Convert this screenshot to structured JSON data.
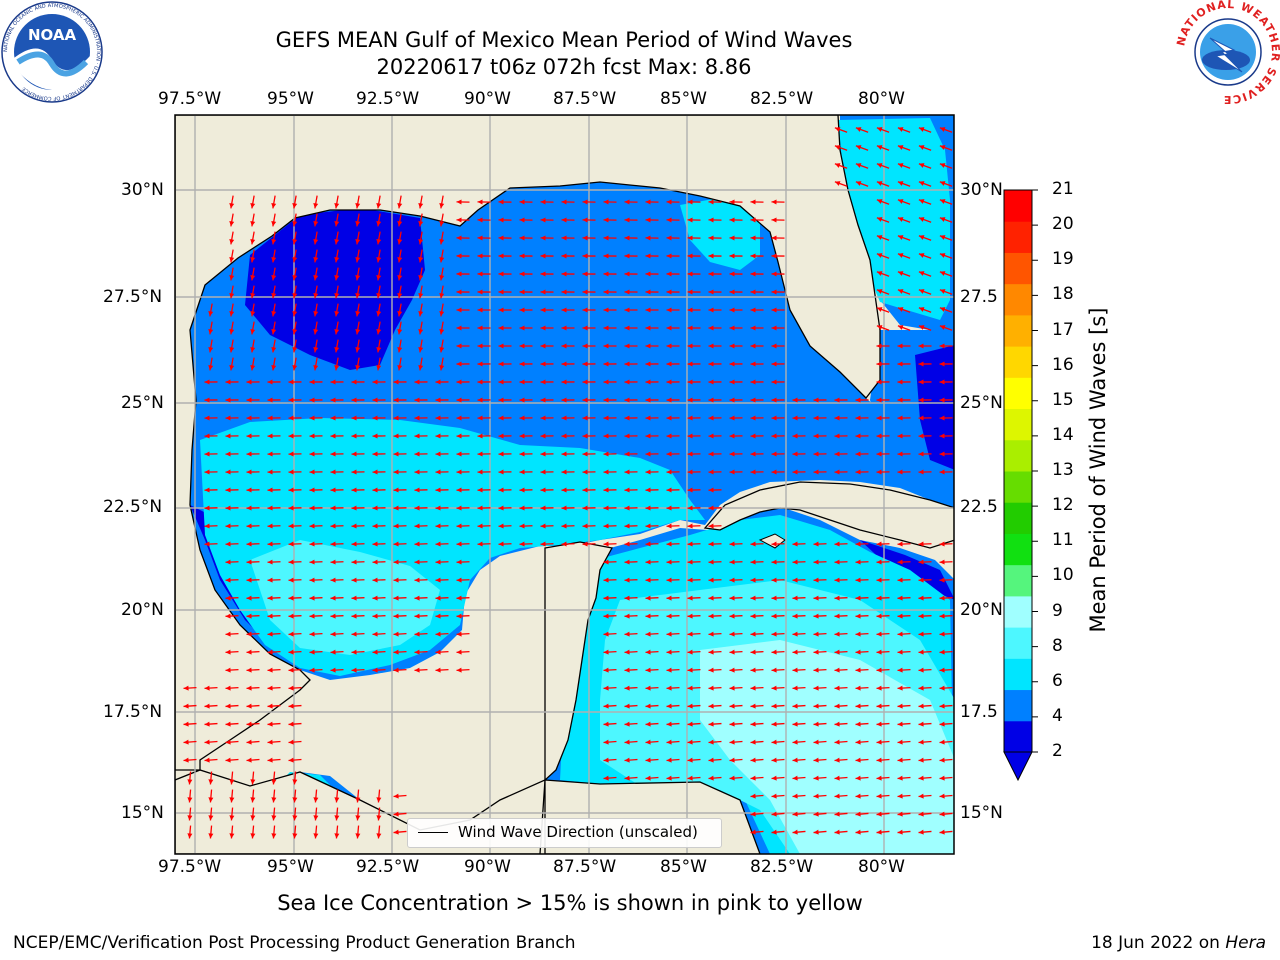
{
  "title": {
    "line1": "GEFS MEAN Gulf of Mexico Mean Period of Wind Waves",
    "line2": "20220617 t06z 072h fcst   Max: 8.86"
  },
  "axes": {
    "lon_ticks": [
      "97.5°W",
      "95°W",
      "92.5°W",
      "90°W",
      "87.5°W",
      "85°W",
      "82.5°W",
      "80°W"
    ],
    "lat_ticks_left": [
      "30°N",
      "27.5°N",
      "25°N",
      "22.5°N",
      "20°N",
      "17.5°N",
      "15°N"
    ],
    "lat_ticks_right": [
      "30°N",
      "27.5",
      "25°N",
      "22.5",
      "20°N",
      "17.5",
      "15°N"
    ]
  },
  "colorbar": {
    "label": "Mean Period of Wind Waves [s]",
    "ticks": [
      "21",
      "20",
      "19",
      "18",
      "17",
      "16",
      "15",
      "14",
      "13",
      "12",
      "11",
      "10",
      "9",
      "8",
      "6",
      "4",
      "2"
    ],
    "colors": [
      "#0000e6",
      "#0080ff",
      "#00e5ff",
      "#4df7ff",
      "#a0ffff",
      "#55f57d",
      "#11e011",
      "#22cc00",
      "#66dd00",
      "#aaee00",
      "#ddf600",
      "#ffff00",
      "#ffd700",
      "#ffb000",
      "#ff8800",
      "#ff5500",
      "#ff2200",
      "#ff0000"
    ],
    "extend_color": "#0000e6"
  },
  "legend": {
    "label": "Wind Wave Direction (unscaled)"
  },
  "note": "Sea Ice Concentration > 15% is shown in pink to yellow",
  "footer": {
    "left": "NCEP/EMC/Verification Post Processing Product Generation Branch",
    "right_prefix": "18 Jun 2022 on ",
    "right_host": "Hera"
  },
  "logos": {
    "noaa": {
      "text": "NOAA",
      "ring": "NATIONAL OCEANIC AND ATMOSPHERIC ADMINISTRATION · U.S. DEPARTMENT OF COMMERCE"
    },
    "nws": {
      "ring": "NATIONAL WEATHER SERVICE"
    }
  },
  "map_colors": {
    "land": "#efecda",
    "arrow": "#ff0000",
    "grid": "#b0b0b0",
    "wave_2_4": "#0080ff",
    "wave_4_6": "#00e5ff",
    "wave_6_8": "#4df7ff",
    "wave_8_9": "#a0ffff",
    "wave_lt2": "#0000e6"
  }
}
